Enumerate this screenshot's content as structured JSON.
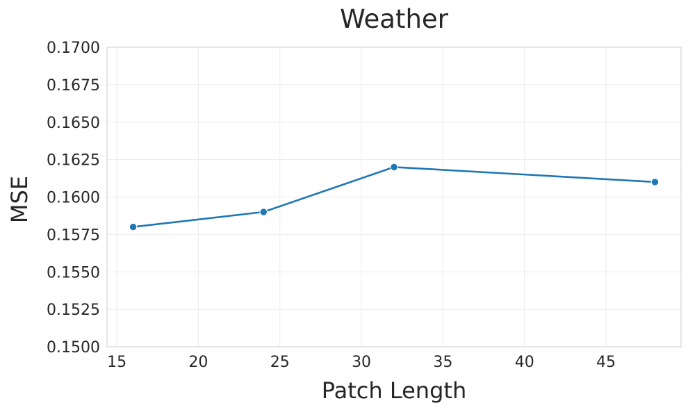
{
  "chart_data": {
    "type": "line",
    "title": "Weather",
    "xlabel": "Patch Length",
    "ylabel": "MSE",
    "xlim": [
      14.4,
      49.6
    ],
    "ylim": [
      0.15,
      0.17
    ],
    "xticks": [
      15,
      20,
      25,
      30,
      35,
      40,
      45
    ],
    "xtick_labels": [
      "15",
      "20",
      "25",
      "30",
      "35",
      "40",
      "45"
    ],
    "yticks": [
      0.15,
      0.1525,
      0.155,
      0.1575,
      0.16,
      0.1625,
      0.165,
      0.1675,
      0.17
    ],
    "ytick_labels": [
      "0.1500",
      "0.1525",
      "0.1550",
      "0.1575",
      "0.1600",
      "0.1625",
      "0.1650",
      "0.1675",
      "0.1700"
    ],
    "grid": true,
    "series": [
      {
        "color": "#1f77b4",
        "marker": "circle",
        "x": [
          16,
          24,
          32,
          48
        ],
        "y": [
          0.158,
          0.159,
          0.162,
          0.161
        ]
      }
    ]
  }
}
